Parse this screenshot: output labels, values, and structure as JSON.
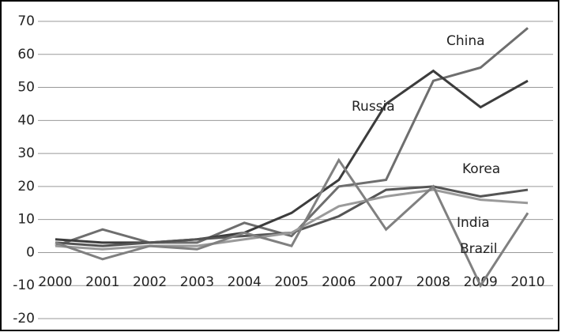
{
  "chart_data": {
    "type": "line",
    "categories": [
      "2000",
      "2001",
      "2002",
      "2003",
      "2004",
      "2005",
      "2006",
      "2007",
      "2008",
      "2009",
      "2010"
    ],
    "series": [
      {
        "name": "China",
        "color": "#6e6e6e",
        "values": [
          2,
          7,
          3,
          3,
          9,
          5,
          20,
          22,
          52,
          56,
          68
        ]
      },
      {
        "name": "Russia",
        "color": "#3c3c3c",
        "values": [
          4,
          3,
          3,
          4,
          6,
          12,
          22,
          45,
          55,
          44,
          52
        ]
      },
      {
        "name": "Korea",
        "color": "#555555",
        "values": [
          3,
          2,
          3,
          4,
          5,
          6,
          11,
          19,
          20,
          17,
          19
        ]
      },
      {
        "name": "India",
        "color": "#9a9a9a",
        "values": [
          2,
          1,
          2,
          2,
          4,
          6,
          14,
          17,
          19,
          16,
          15
        ]
      },
      {
        "name": "Brazil",
        "color": "#808080",
        "values": [
          3,
          -2,
          2,
          1,
          6,
          2,
          28,
          7,
          20,
          -10,
          12
        ]
      }
    ],
    "ylim": [
      -20,
      70
    ],
    "yticks": [
      -20,
      -10,
      0,
      10,
      20,
      30,
      40,
      50,
      60,
      70
    ],
    "grid": true
  }
}
